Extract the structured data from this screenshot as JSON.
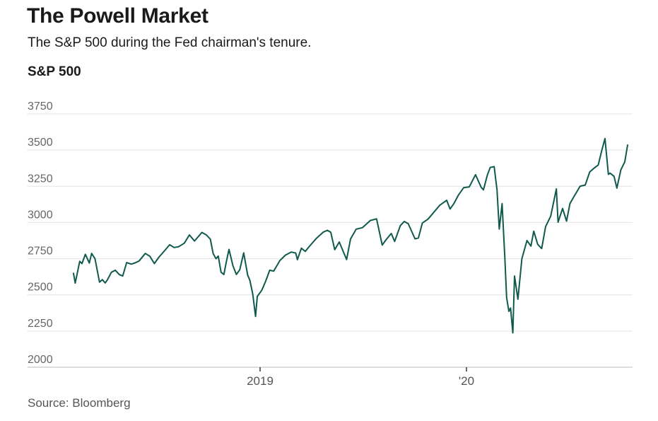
{
  "header": {
    "title": "The Powell Market",
    "subtitle": "The S&P 500 during the Fed chairman's tenure."
  },
  "footer": {
    "source": "Source: Bloomberg"
  },
  "colors": {
    "line": "#0f5a4c",
    "grid": "#e3e3e3",
    "axis": "#bbbbbb"
  },
  "chart_data": {
    "type": "line",
    "ylabel": "S&P 500",
    "xlabel": "",
    "ylim": [
      2000,
      3750
    ],
    "yticks": [
      2000,
      2250,
      2500,
      2750,
      3000,
      3250,
      3500,
      3750
    ],
    "xlim": [
      "2018-02-05",
      "2020-10-12"
    ],
    "xticks": [
      {
        "date": "2019-01-01",
        "label": "2019"
      },
      {
        "date": "2020-01-01",
        "label": "'20"
      }
    ],
    "grid": true,
    "legend": "none",
    "series": [
      {
        "x": [
          "2018-02-05",
          "2018-02-08",
          "2018-02-12",
          "2018-02-16",
          "2018-02-20",
          "2018-02-26",
          "2018-03-05",
          "2018-03-09",
          "2018-03-15",
          "2018-03-23",
          "2018-03-28",
          "2018-04-02",
          "2018-04-06",
          "2018-04-13",
          "2018-04-20",
          "2018-04-27",
          "2018-05-03",
          "2018-05-10",
          "2018-05-18",
          "2018-05-25",
          "2018-06-01",
          "2018-06-12",
          "2018-06-20",
          "2018-06-28",
          "2018-07-06",
          "2018-07-17",
          "2018-07-25",
          "2018-08-02",
          "2018-08-10",
          "2018-08-20",
          "2018-08-29",
          "2018-09-07",
          "2018-09-20",
          "2018-09-28",
          "2018-10-05",
          "2018-10-10",
          "2018-10-15",
          "2018-10-19",
          "2018-10-24",
          "2018-10-29",
          "2018-11-02",
          "2018-11-07",
          "2018-11-14",
          "2018-11-20",
          "2018-11-26",
          "2018-12-03",
          "2018-12-10",
          "2018-12-14",
          "2018-12-19",
          "2018-12-24",
          "2018-12-27",
          "2019-01-04",
          "2019-01-11",
          "2019-01-18",
          "2019-01-25",
          "2019-02-05",
          "2019-02-15",
          "2019-02-25",
          "2019-03-05",
          "2019-03-08",
          "2019-03-15",
          "2019-03-22",
          "2019-03-29",
          "2019-04-10",
          "2019-04-23",
          "2019-04-30",
          "2019-05-06",
          "2019-05-13",
          "2019-05-21",
          "2019-06-03",
          "2019-06-10",
          "2019-06-20",
          "2019-07-01",
          "2019-07-15",
          "2019-07-26",
          "2019-08-05",
          "2019-08-12",
          "2019-08-21",
          "2019-08-27",
          "2019-09-06",
          "2019-09-13",
          "2019-09-20",
          "2019-10-02",
          "2019-10-08",
          "2019-10-15",
          "2019-10-25",
          "2019-11-05",
          "2019-11-15",
          "2019-11-27",
          "2019-12-03",
          "2019-12-10",
          "2019-12-18",
          "2019-12-27",
          "2020-01-06",
          "2020-01-17",
          "2020-01-27",
          "2020-01-31",
          "2020-02-07",
          "2020-02-12",
          "2020-02-19",
          "2020-02-24",
          "2020-02-28",
          "2020-03-04",
          "2020-03-09",
          "2020-03-12",
          "2020-03-16",
          "2020-03-19",
          "2020-03-23",
          "2020-03-26",
          "2020-04-01",
          "2020-04-08",
          "2020-04-17",
          "2020-04-24",
          "2020-04-29",
          "2020-05-06",
          "2020-05-13",
          "2020-05-20",
          "2020-05-29",
          "2020-06-08",
          "2020-06-11",
          "2020-06-19",
          "2020-06-26",
          "2020-07-02",
          "2020-07-10",
          "2020-07-20",
          "2020-07-29",
          "2020-08-06",
          "2020-08-13",
          "2020-08-21",
          "2020-08-28",
          "2020-09-02",
          "2020-09-08",
          "2020-09-11",
          "2020-09-18",
          "2020-09-23",
          "2020-09-30",
          "2020-10-07",
          "2020-10-12"
        ],
        "values": [
          2649,
          2581,
          2656,
          2732,
          2716,
          2780,
          2720,
          2786,
          2750,
          2588,
          2605,
          2582,
          2604,
          2656,
          2670,
          2640,
          2630,
          2723,
          2712,
          2721,
          2734,
          2786,
          2767,
          2716,
          2760,
          2809,
          2846,
          2827,
          2833,
          2857,
          2914,
          2872,
          2931,
          2914,
          2885,
          2785,
          2750,
          2768,
          2656,
          2641,
          2723,
          2814,
          2701,
          2641,
          2673,
          2790,
          2637,
          2600,
          2506,
          2351,
          2489,
          2532,
          2596,
          2670,
          2664,
          2737,
          2775,
          2796,
          2789,
          2743,
          2822,
          2800,
          2834,
          2888,
          2934,
          2946,
          2932,
          2812,
          2865,
          2744,
          2886,
          2954,
          2964,
          3014,
          3025,
          2844,
          2882,
          2924,
          2869,
          2978,
          3007,
          2992,
          2887,
          2893,
          2996,
          3023,
          3074,
          3120,
          3153,
          3093,
          3132,
          3191,
          3240,
          3246,
          3330,
          3243,
          3225,
          3328,
          3380,
          3386,
          3226,
          2954,
          3130,
          2746,
          2481,
          2386,
          2409,
          2237,
          2630,
          2470,
          2750,
          2875,
          2837,
          2940,
          2849,
          2820,
          2972,
          3044,
          3232,
          3002,
          3097,
          3009,
          3130,
          3185,
          3251,
          3258,
          3349,
          3373,
          3397,
          3508,
          3580,
          3332,
          3341,
          3319,
          3237,
          3363,
          3419,
          3535
        ]
      }
    ]
  }
}
